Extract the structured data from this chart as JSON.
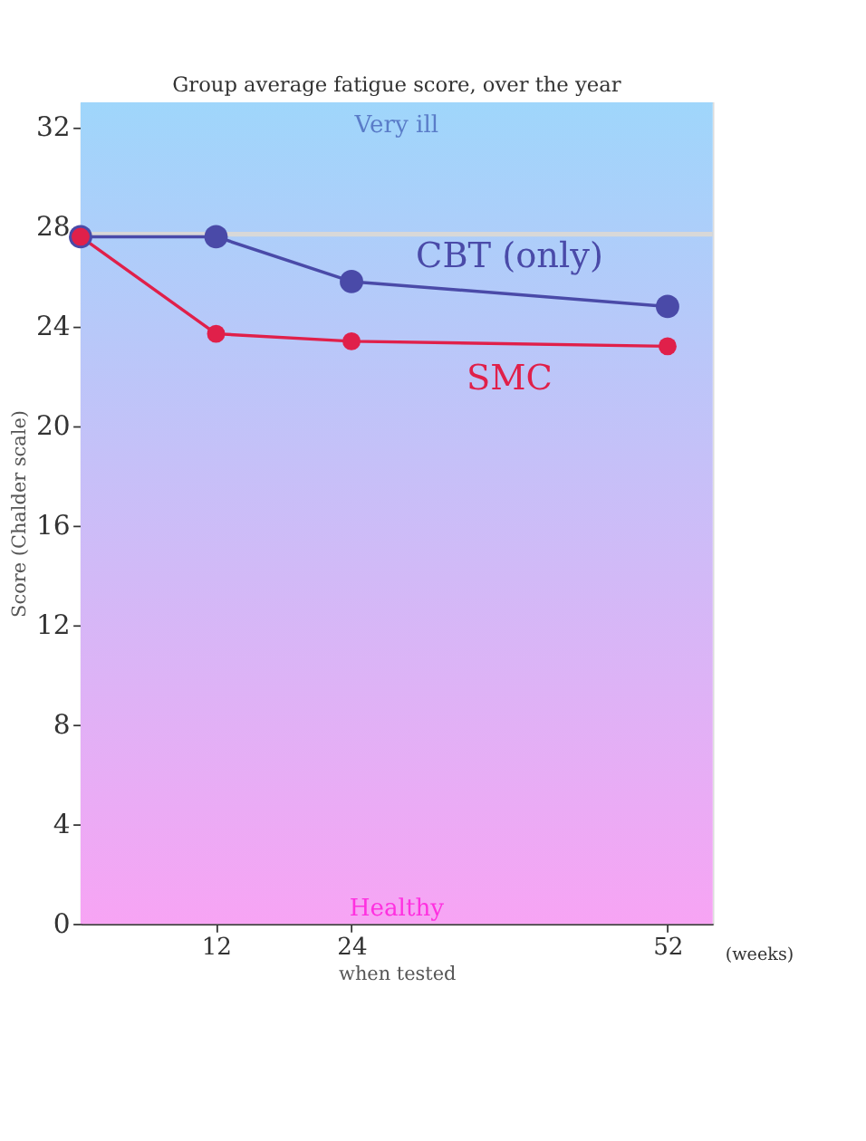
{
  "chart_data": {
    "type": "line",
    "title": "Group average fatigue score, over the year",
    "xlabel": "when tested",
    "ylabel": "Score (Chalder scale)",
    "x": [
      0,
      12,
      24,
      52
    ],
    "series": [
      {
        "name": "CBT (only)",
        "color": "#4a4aa8",
        "values": [
          27.6,
          27.6,
          25.8,
          24.8
        ]
      },
      {
        "name": "SMC",
        "color": "#e0204a",
        "values": [
          27.6,
          23.7,
          23.4,
          23.2
        ]
      }
    ],
    "xlim": [
      0,
      56
    ],
    "xticks": [
      12,
      24,
      52
    ],
    "ylim": [
      0,
      33
    ],
    "yticks": [
      0,
      4,
      8,
      12,
      16,
      20,
      24,
      28,
      32
    ],
    "ref_lines": [
      {
        "axis": "y",
        "value": 27.7,
        "color": "#d8d8d8"
      }
    ],
    "annotations": [
      "Very ill",
      "Healthy",
      "(weeks)"
    ],
    "marker": "circle",
    "line_style": "solid",
    "grid": false,
    "legend": false
  }
}
